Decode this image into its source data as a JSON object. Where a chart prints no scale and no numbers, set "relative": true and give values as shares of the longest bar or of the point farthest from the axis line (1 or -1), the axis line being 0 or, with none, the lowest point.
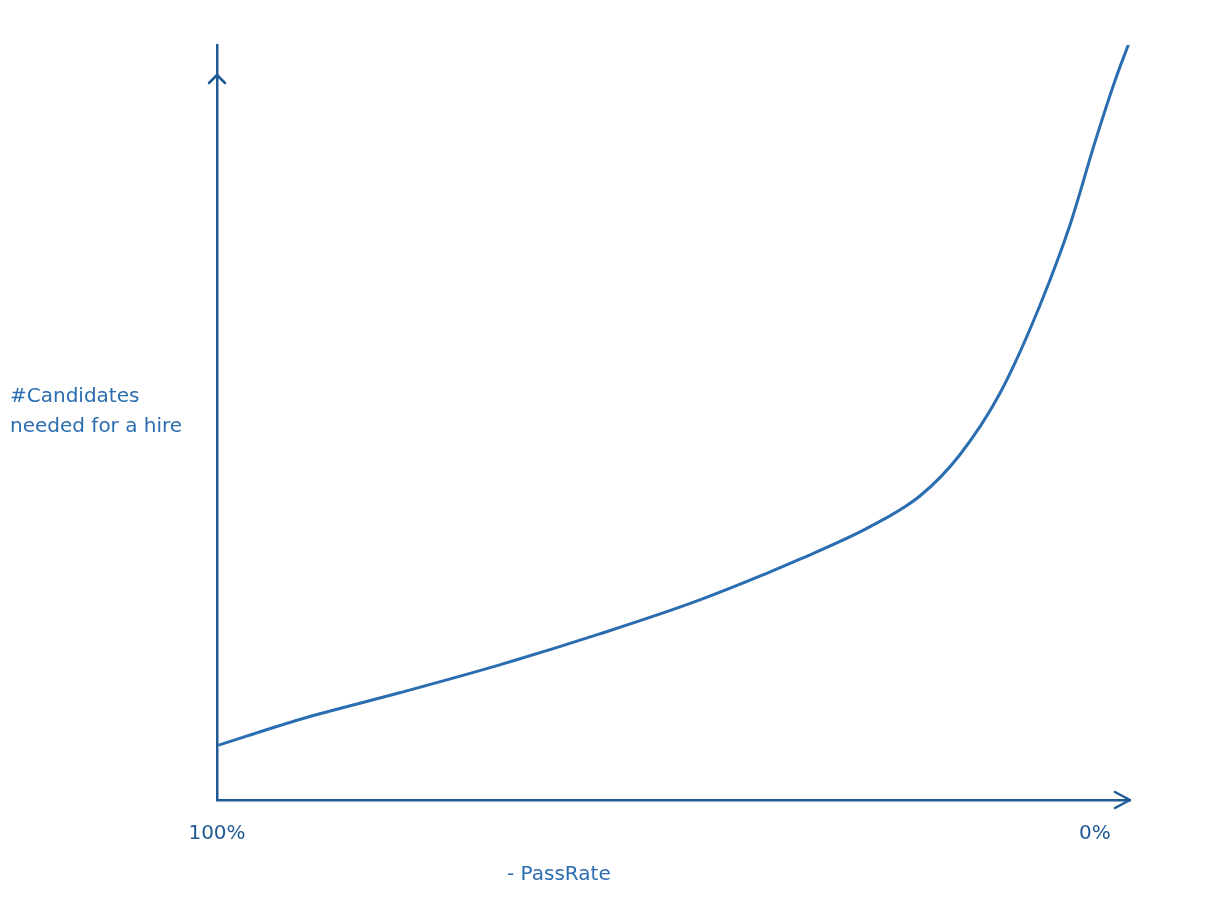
{
  "chart_data": {
    "type": "line",
    "xlabel": "- PassRate",
    "ylabel": "#Candidates\nneeded for a hire",
    "relative": true,
    "xlim": [
      100,
      -4
    ],
    "xticks": [
      {
        "value": 100,
        "label": "100%"
      },
      {
        "value": 0,
        "label": "0%"
      }
    ],
    "grid": false,
    "legend": false,
    "marker": "none",
    "line_style": "solid",
    "series": [
      {
        "color": "#2a6db0",
        "x": [
          99.7,
          90.5,
          79.2,
          67.8,
          56.4,
          45.0,
          33.6,
          25.6,
          19.9,
          15.4,
          10.8,
          6.3,
          2.8,
          0,
          -2.3,
          -3.8
        ],
        "values": [
          0.073,
          0.107,
          0.142,
          0.179,
          0.22,
          0.265,
          0.319,
          0.362,
          0.403,
          0.457,
          0.539,
          0.654,
          0.763,
          0.871,
          0.953,
          1
        ]
      }
    ]
  }
}
